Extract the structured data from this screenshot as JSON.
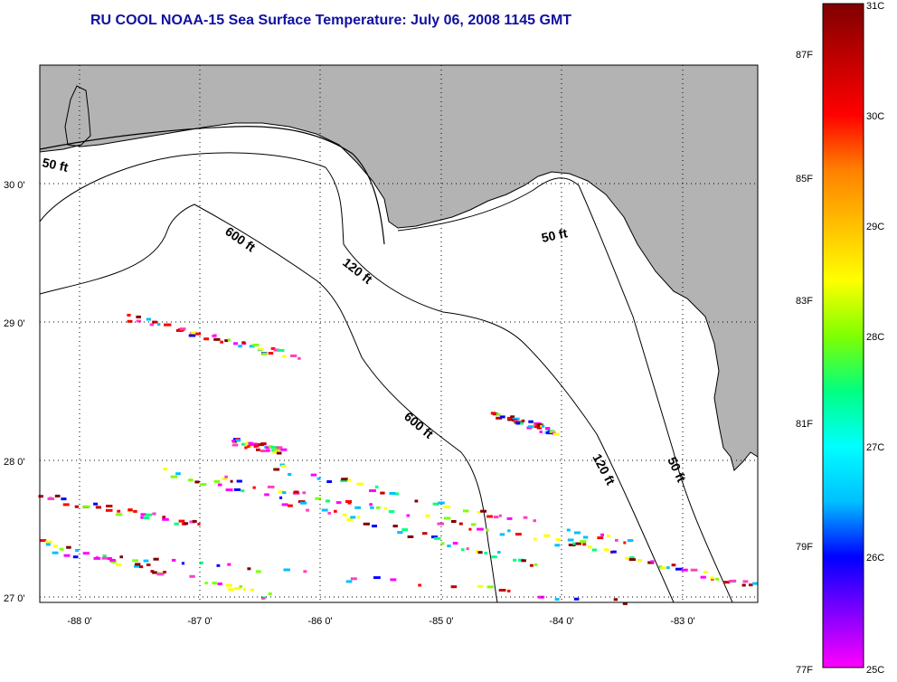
{
  "title": "RU COOL  NOAA-15  Sea Surface Temperature:  July 06, 2008 1145 GMT",
  "colors": {
    "land": "#b3b3b3",
    "water": "#ffffff",
    "title": "#1010a0",
    "depth_line": "#000000"
  },
  "axes": {
    "longitude_labels": [
      "-88 0'",
      "-87 0'",
      "-86 0'",
      "-85 0'",
      "-84 0'",
      "-83 0'"
    ],
    "latitude_labels": [
      "30 0'",
      "29 0'",
      "28 0'",
      "27 0'"
    ],
    "grid": "dotted"
  },
  "depth_labels": [
    {
      "id": "d50-west",
      "text": "50 ft"
    },
    {
      "id": "d600-north",
      "text": "600 ft"
    },
    {
      "id": "d120-north",
      "text": "120 ft"
    },
    {
      "id": "d50-east",
      "text": "50 ft"
    },
    {
      "id": "d600-south",
      "text": "600 ft"
    },
    {
      "id": "d120-south",
      "text": "120 ft"
    },
    {
      "id": "d50-south",
      "text": "50 ft"
    }
  ],
  "colorbar": {
    "celsius_labels": [
      "31C",
      "30C",
      "29C",
      "28C",
      "27C",
      "26C",
      "25C"
    ],
    "fahrenheit_labels": [
      "87F",
      "85F",
      "83F",
      "81F",
      "79F",
      "77F"
    ],
    "stops": [
      "#ff00ff",
      "#8000ff",
      "#0000ff",
      "#00c0ff",
      "#00ffff",
      "#00ff80",
      "#80ff00",
      "#ffff00",
      "#ffc000",
      "#ff8000",
      "#ff0000",
      "#c00000",
      "#800000"
    ]
  }
}
